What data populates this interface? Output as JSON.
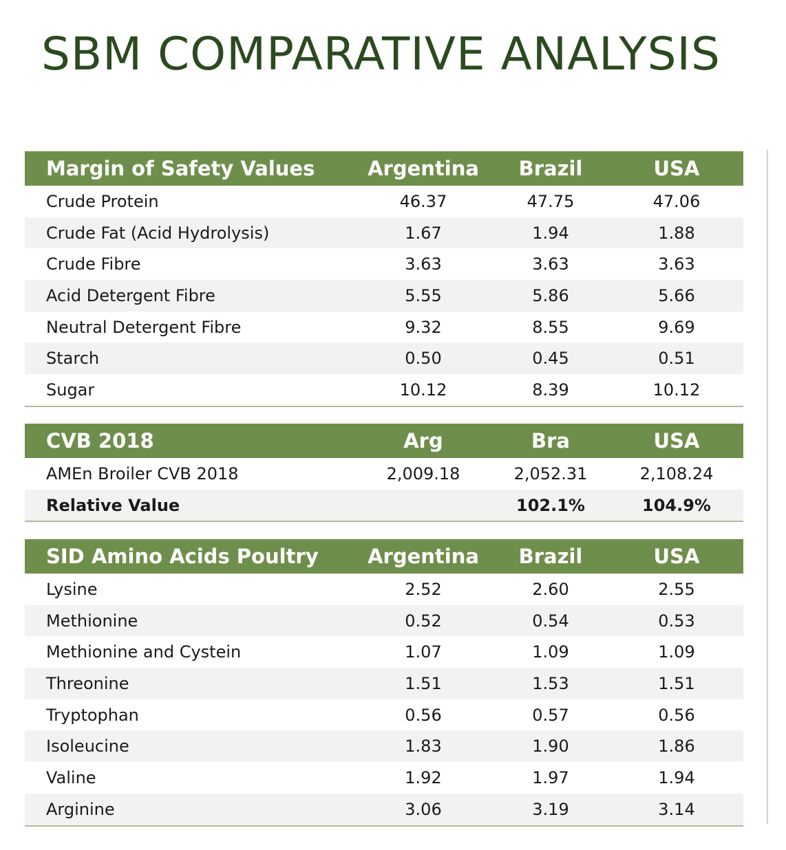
{
  "title": "SBM COMPARATIVE ANALYSIS",
  "colors": {
    "header_bg": "#6e8f4b",
    "title": "#2b4a1f",
    "alt_row": "#f2f2f2"
  },
  "tables": [
    {
      "headers": [
        "Margin of Safety Values",
        "Argentina",
        "Brazil",
        "USA"
      ],
      "rows": [
        [
          "Crude Protein",
          "46.37",
          "47.75",
          "47.06"
        ],
        [
          "Crude Fat (Acid Hydrolysis)",
          "1.67",
          "1.94",
          "1.88"
        ],
        [
          "Crude Fibre",
          "3.63",
          "3.63",
          "3.63"
        ],
        [
          "Acid Detergent Fibre",
          "5.55",
          "5.86",
          "5.66"
        ],
        [
          "Neutral Detergent Fibre",
          "9.32",
          "8.55",
          "9.69"
        ],
        [
          "Starch",
          "0.50",
          "0.45",
          "0.51"
        ],
        [
          "Sugar",
          "10.12",
          "8.39",
          "10.12"
        ]
      ]
    },
    {
      "headers": [
        "CVB 2018",
        "Arg",
        "Bra",
        "USA"
      ],
      "rows": [
        [
          "AMEn Broiler CVB 2018",
          "2,009.18",
          "2,052.31",
          "2,108.24"
        ],
        [
          "Relative Value",
          "",
          "102.1%",
          "104.9%"
        ]
      ],
      "bold_rows": [
        1
      ]
    },
    {
      "headers": [
        "SID Amino Acids Poultry",
        "Argentina",
        "Brazil",
        "USA"
      ],
      "rows": [
        [
          "Lysine",
          "2.52",
          "2.60",
          "2.55"
        ],
        [
          "Methionine",
          "0.52",
          "0.54",
          "0.53"
        ],
        [
          "Methionine and Cystein",
          "1.07",
          "1.09",
          "1.09"
        ],
        [
          "Threonine",
          "1.51",
          "1.53",
          "1.51"
        ],
        [
          "Tryptophan",
          "0.56",
          "0.57",
          "0.56"
        ],
        [
          "Isoleucine",
          "1.83",
          "1.90",
          "1.86"
        ],
        [
          "Valine",
          "1.92",
          "1.97",
          "1.94"
        ],
        [
          "Arginine",
          "3.06",
          "3.19",
          "3.14"
        ]
      ]
    }
  ]
}
